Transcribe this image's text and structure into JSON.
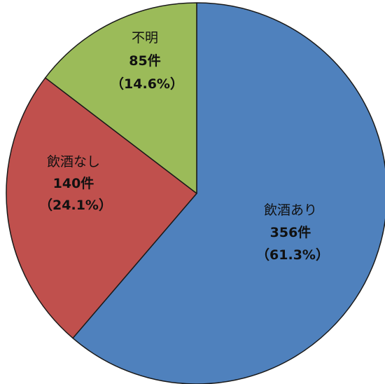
{
  "chart_data": {
    "type": "pie",
    "title": "",
    "slices": [
      {
        "name": "飲酒あり",
        "value": 356,
        "count_label": "356件",
        "percent_label": "（61.3%）",
        "color": "#4f81bd"
      },
      {
        "name": "飲酒なし",
        "value": 140,
        "count_label": "140件",
        "percent_label": "（24.1%）",
        "color": "#c0504d"
      },
      {
        "name": "不明",
        "value": 85,
        "count_label": "85件",
        "percent_label": "（14.6%）",
        "color": "#9bbb59"
      }
    ],
    "start": "12 o'clock",
    "direction": "clockwise",
    "legend": "none"
  }
}
